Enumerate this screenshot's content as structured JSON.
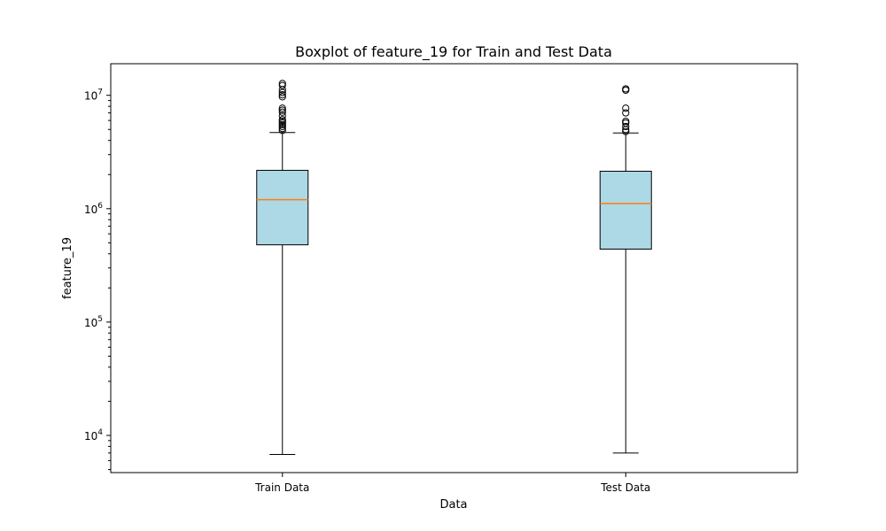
{
  "chart_data": {
    "type": "boxplot",
    "title": "Boxplot of feature_19 for Train and Test Data",
    "xlabel": "Data",
    "ylabel": "feature_19",
    "yscale": "log",
    "ylim": [
      4700,
      19000000
    ],
    "yticks": [
      {
        "value": 10000,
        "base": "10",
        "exp": "4"
      },
      {
        "value": 100000,
        "base": "10",
        "exp": "5"
      },
      {
        "value": 1000000,
        "base": "10",
        "exp": "6"
      },
      {
        "value": 10000000,
        "base": "10",
        "exp": "7"
      }
    ],
    "grid": false,
    "box_fill": "#add8e6",
    "median_color": "#ff7f0e",
    "categories": [
      "Train Data",
      "Test Data"
    ],
    "boxes": [
      {
        "name": "Train Data",
        "whisker_low": 6800,
        "q1": 480000,
        "median": 1200000,
        "q3": 2180000,
        "whisker_high": 4700000,
        "outliers": [
          4900000,
          5100000,
          5300000,
          5500000,
          5700000,
          5900000,
          6100000,
          6600000,
          7100000,
          7400000,
          7700000,
          9700000,
          10100000,
          10600000,
          11200000,
          12200000,
          12700000
        ]
      },
      {
        "name": "Test Data",
        "whisker_low": 7000,
        "q1": 440000,
        "median": 1110000,
        "q3": 2140000,
        "whisker_high": 4650000,
        "outliers": [
          4800000,
          5000000,
          5300000,
          5700000,
          5900000,
          7000000,
          7700000,
          11100000,
          11400000
        ]
      }
    ]
  }
}
